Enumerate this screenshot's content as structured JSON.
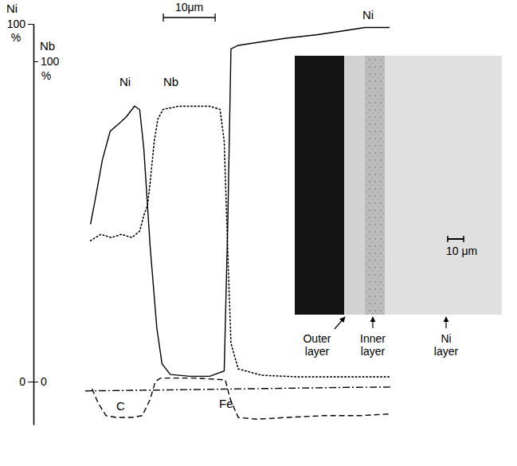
{
  "chart_data": {
    "type": "line",
    "ylabel": "Ni",
    "yunit": "%",
    "y2label": "Nb",
    "y2unit": "%",
    "xlim": [
      -11,
      62
    ],
    "ylim": [
      -12,
      100
    ],
    "yticks": [
      0,
      100
    ],
    "y2lim": [
      -13.4,
      111.7
    ],
    "y2ticks": [
      0,
      100
    ],
    "tick_labels": "y",
    "grid": false,
    "scale_bar": {
      "value": 10,
      "label": "10μm"
    },
    "series": [
      {
        "name": "Ni",
        "color": "#000000",
        "line_style": "solid",
        "x": [
          0,
          0.8,
          2.3,
          3.8,
          5.4,
          6.9,
          8.5,
          9.5,
          10.3,
          11.5,
          12.8,
          13.8,
          15.4,
          19.2,
          23,
          25.8,
          26.5,
          27.1,
          28.5,
          33,
          37.7,
          43.8,
          48.5,
          53,
          57.7
        ],
        "values": [
          44,
          50,
          62,
          70,
          72,
          74,
          77,
          76,
          65,
          38,
          15,
          5,
          2,
          1.5,
          1.5,
          3,
          45,
          93,
          94,
          95,
          96,
          97,
          98,
          99,
          99
        ]
      },
      {
        "name": "Nb",
        "color": "#000000",
        "line_style": "dotted",
        "axis": "y2",
        "x": [
          0,
          2,
          4,
          6,
          8,
          9.5,
          10.3,
          11,
          11.5,
          12.3,
          13,
          14,
          17,
          20,
          23,
          25,
          25.8,
          26.5,
          27.1,
          28.5,
          33,
          40,
          50,
          58
        ],
        "values": [
          44,
          46,
          45,
          46,
          45,
          47,
          52,
          55,
          62,
          75,
          82,
          85,
          86,
          86,
          86,
          85,
          75,
          40,
          12,
          4,
          2,
          1.5,
          1.5,
          1.5
        ]
      },
      {
        "name": "C",
        "color": "#000000",
        "line_style": "dashed",
        "x": [
          0.3,
          1.5,
          3,
          5,
          8,
          10,
          11.5,
          12.5,
          13.5,
          20,
          26,
          27,
          28.5,
          32,
          38,
          45,
          52,
          58
        ],
        "values": [
          -2,
          -6,
          -9.5,
          -10,
          -10,
          -9.5,
          -5,
          0,
          1,
          1,
          0.5,
          -5,
          -10,
          -10.5,
          -10,
          -9.5,
          -9.5,
          -9
        ]
      },
      {
        "name": "Fe",
        "color": "#000000",
        "line_style": "dashdot",
        "x": [
          -1,
          10,
          20,
          30,
          40,
          50,
          58
        ],
        "values": [
          -2.6,
          -2.4,
          -2.2,
          -2.0,
          -1.8,
          -1.6,
          -1.5
        ]
      }
    ],
    "inset": {
      "labels": [
        "Outer layer",
        "Inner layer",
        "Ni layer"
      ],
      "scale_bar_label": "10 μm"
    }
  }
}
